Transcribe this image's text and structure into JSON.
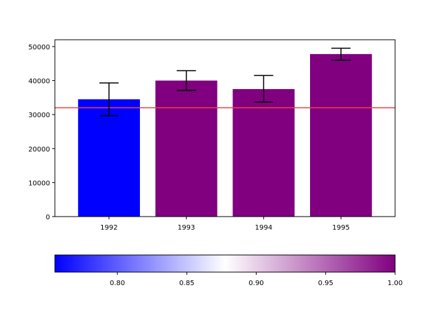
{
  "chart_data": [
    {
      "type": "bar",
      "categories": [
        "1992",
        "1993",
        "1994",
        "1995"
      ],
      "values": [
        34500,
        40000,
        37500,
        47800
      ],
      "error_low": [
        29700,
        37100,
        33700,
        46000
      ],
      "error_high": [
        39300,
        42900,
        41500,
        49500
      ],
      "ylim": [
        0,
        52000
      ],
      "y_ticks": [
        "0",
        "10000",
        "20000",
        "30000",
        "40000",
        "50000"
      ],
      "reference_line": {
        "y": 32000,
        "color": "#f04040"
      },
      "bar_colors": [
        "#0000ff",
        "#800080",
        "#800080",
        "#800080"
      ],
      "grid": false,
      "title": "",
      "xlabel": "",
      "ylabel": ""
    },
    {
      "type": "colorbar",
      "range": [
        0.755,
        1.0
      ],
      "ticks": [
        "0.80",
        "0.85",
        "0.90",
        "0.95",
        "1.00"
      ],
      "colormap": [
        "#0000ff",
        "#ffffff",
        "#800080"
      ]
    }
  ]
}
